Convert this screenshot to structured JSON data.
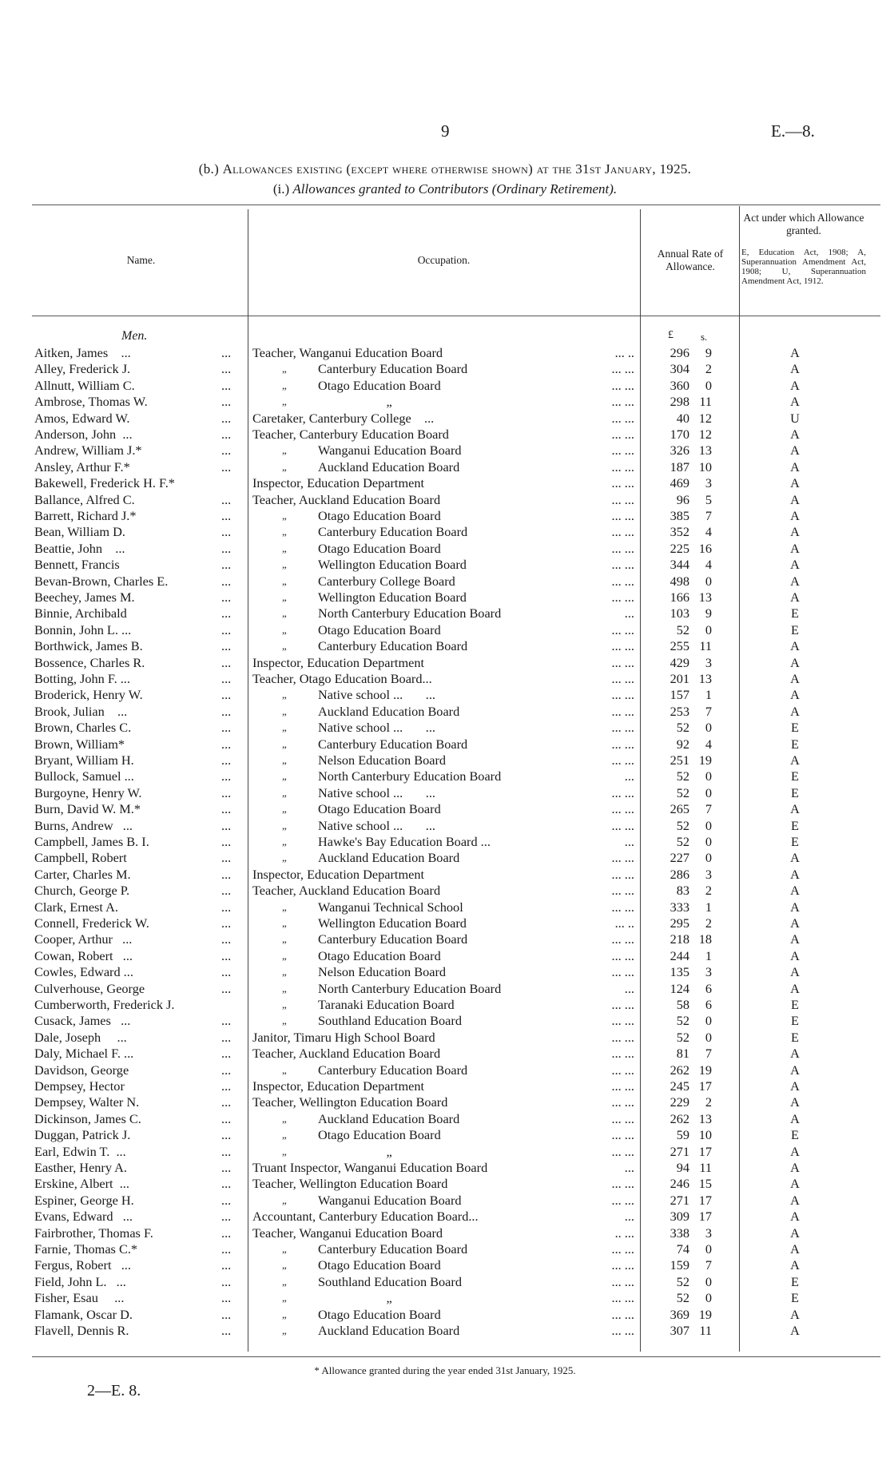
{
  "page": {
    "number": "9",
    "reference": "E.—8.",
    "bottom_signature": "2—E. 8."
  },
  "title": {
    "prefix": "(b.)",
    "text": "Allowances existing (except where otherwise shown) at the 31st January, 1925."
  },
  "subtitle": {
    "prefix": "(i.)",
    "text": "Allowances granted to Contributors (Ordinary Retirement)."
  },
  "headers": {
    "name": "Name.",
    "occupation": "Occupation.",
    "rate": "Annual Rate of Allowance.",
    "act": "Act under which Allowance granted.",
    "act_note": "E, Education Act, 1908; A, Superannuation Amendment Act, 1908; U, Superannuation Amendment Act, 1912."
  },
  "section": "Men.",
  "units": {
    "pounds": "£",
    "shillings": "s."
  },
  "leader": "...",
  "footnote": "* Allowance granted during the year ended 31st January, 1925.",
  "rows": [
    {
      "name": "Aitken, James    ...",
      "p": "",
      "b": "Teacher, Wanganui Education Board",
      "l": "...      ..",
      "pd": "296",
      "sh": "9",
      "act": "A"
    },
    {
      "name": "Alley, Frederick J.",
      "p": "„",
      "b": "Canterbury Education Board",
      "l": "...      ...",
      "pd": "304",
      "sh": "2",
      "act": "A"
    },
    {
      "name": "Allnutt, William C.",
      "p": "„",
      "b": "Otago Education Board",
      "l": "...      ...",
      "pd": "360",
      "sh": "0",
      "act": "A"
    },
    {
      "name": "Ambrose, Thomas W.",
      "p": "„",
      "b": "                     „",
      "l": "...      ...",
      "pd": "298",
      "sh": "11",
      "act": "A"
    },
    {
      "name": "Amos, Edward W.",
      "p": "",
      "b": "Caretaker, Canterbury College    ...",
      "l": "...      ...",
      "pd": "40",
      "sh": "12",
      "act": "U"
    },
    {
      "name": "Anderson, John  ...",
      "p": "",
      "b": "Teacher, Canterbury Education Board",
      "l": "...      ...",
      "pd": "170",
      "sh": "12",
      "act": "A"
    },
    {
      "name": "Andrew, William J.*",
      "p": "„",
      "b": "Wanganui Education Board",
      "l": "...      ...",
      "pd": "326",
      "sh": "13",
      "act": "A"
    },
    {
      "name": "Ansley, Arthur F.*",
      "p": "„",
      "b": "Auckland Education Board",
      "l": "...      ...",
      "pd": "187",
      "sh": "10",
      "act": "A"
    },
    {
      "name": "Bakewell, Frederick H. F.*",
      "nodots": true,
      "p": "",
      "b": "Inspector, Education Department",
      "l": "...      ...",
      "pd": "469",
      "sh": "3",
      "act": "A"
    },
    {
      "name": "Ballance, Alfred C.",
      "p": "",
      "b": "Teacher, Auckland Education Board",
      "l": "...      ...",
      "pd": "96",
      "sh": "5",
      "act": "A"
    },
    {
      "name": "Barrett, Richard J.*",
      "p": "„",
      "b": "Otago Education Board",
      "l": "...      ...",
      "pd": "385",
      "sh": "7",
      "act": "A"
    },
    {
      "name": "Bean, William D.",
      "p": "„",
      "b": "Canterbury Education Board",
      "l": "...      ...",
      "pd": "352",
      "sh": "4",
      "act": "A"
    },
    {
      "name": "Beattie, John    ...",
      "p": "„",
      "b": "Otago Education Board",
      "l": "...      ...",
      "pd": "225",
      "sh": "16",
      "act": "A"
    },
    {
      "name": "Bennett, Francis",
      "p": "„",
      "b": "Wellington Education Board",
      "l": "...      ...",
      "pd": "344",
      "sh": "4",
      "act": "A"
    },
    {
      "name": "Bevan-Brown, Charles E.",
      "p": "„",
      "b": "Canterbury College Board",
      "l": "...      ...",
      "pd": "498",
      "sh": "0",
      "act": "A"
    },
    {
      "name": "Beechey, James M.",
      "p": "„",
      "b": "Wellington Education Board",
      "l": "...      ...",
      "pd": "166",
      "sh": "13",
      "act": "A"
    },
    {
      "name": "Binnie, Archibald",
      "p": "„",
      "b": "North Canterbury Education Board",
      "l": "...",
      "pd": "103",
      "sh": "9",
      "act": "E"
    },
    {
      "name": "Bonnin, John L. ...",
      "p": "„",
      "b": "Otago Education Board",
      "l": "...      ...",
      "pd": "52",
      "sh": "0",
      "act": "E"
    },
    {
      "name": "Borthwick, James B.",
      "p": "„",
      "b": "Canterbury Education Board",
      "l": "...      ...",
      "pd": "255",
      "sh": "11",
      "act": "A"
    },
    {
      "name": "Bossence, Charles R.",
      "p": "",
      "b": "Inspector, Education Department",
      "l": "...      ...",
      "pd": "429",
      "sh": "3",
      "act": "A"
    },
    {
      "name": "Botting, John F. ...",
      "p": "",
      "b": "Teacher, Otago Education Board...",
      "l": "...      ...",
      "pd": "201",
      "sh": "13",
      "act": "A"
    },
    {
      "name": "Broderick, Henry W.",
      "p": "„",
      "b": "Native school ...       ...",
      "l": "...      ...",
      "pd": "157",
      "sh": "1",
      "act": "A"
    },
    {
      "name": "Brook, Julian    ...",
      "p": "„",
      "b": "Auckland Education Board",
      "l": "...      ...",
      "pd": "253",
      "sh": "7",
      "act": "A"
    },
    {
      "name": "Brown, Charles C.",
      "p": "„",
      "b": "Native school ...       ...",
      "l": "...      ...",
      "pd": "52",
      "sh": "0",
      "act": "E"
    },
    {
      "name": "Brown, William*",
      "p": "„",
      "b": "Canterbury Education Board",
      "l": "...      ...",
      "pd": "92",
      "sh": "4",
      "act": "E"
    },
    {
      "name": "Bryant, William H.",
      "p": "„",
      "b": "Nelson Education Board",
      "l": "...      ...",
      "pd": "251",
      "sh": "19",
      "act": "A"
    },
    {
      "name": "Bullock, Samuel ...",
      "p": "„",
      "b": "North Canterbury Education Board",
      "l": "...",
      "pd": "52",
      "sh": "0",
      "act": "E"
    },
    {
      "name": "Burgoyne, Henry W.",
      "p": "„",
      "b": "Native school ...       ...",
      "l": "...      ...",
      "pd": "52",
      "sh": "0",
      "act": "E"
    },
    {
      "name": "Burn, David W. M.*",
      "p": "„",
      "b": "Otago Education Board",
      "l": "...      ...",
      "pd": "265",
      "sh": "7",
      "act": "A"
    },
    {
      "name": "Burns, Andrew   ...",
      "p": "„",
      "b": "Native school ...       ...",
      "l": "...      ...",
      "pd": "52",
      "sh": "0",
      "act": "E"
    },
    {
      "name": "Campbell, James B. I.",
      "p": "„",
      "b": "Hawke's Bay Education Board ...",
      "l": "...",
      "pd": "52",
      "sh": "0",
      "act": "E"
    },
    {
      "name": "Campbell, Robert",
      "p": "„",
      "b": "Auckland Education Board",
      "l": "...      ...",
      "pd": "227",
      "sh": "0",
      "act": "A"
    },
    {
      "name": "Carter, Charles M.",
      "p": "",
      "b": "Inspector, Education Department",
      "l": "...      ...",
      "pd": "286",
      "sh": "3",
      "act": "A"
    },
    {
      "name": "Church, George P.",
      "p": "",
      "b": "Teacher, Auckland Education Board",
      "l": "...      ...",
      "pd": "83",
      "sh": "2",
      "act": "A"
    },
    {
      "name": "Clark, Ernest A.",
      "p": "„",
      "b": "Wanganui Technical School",
      "l": "...      ...",
      "pd": "333",
      "sh": "1",
      "act": "A"
    },
    {
      "name": "Connell, Frederick W.",
      "p": "„",
      "b": "Wellington Education Board",
      "l": "...      ..",
      "pd": "295",
      "sh": "2",
      "act": "A"
    },
    {
      "name": "Cooper, Arthur   ...",
      "p": "„",
      "b": "Canterbury Education Board",
      "l": "...      ...",
      "pd": "218",
      "sh": "18",
      "act": "A"
    },
    {
      "name": "Cowan, Robert   ...",
      "p": "„",
      "b": "Otago Education Board",
      "l": "...      ...",
      "pd": "244",
      "sh": "1",
      "act": "A"
    },
    {
      "name": "Cowles, Edward ...",
      "p": "„",
      "b": "Nelson Education Board",
      "l": "...      ...",
      "pd": "135",
      "sh": "3",
      "act": "A"
    },
    {
      "name": "Culverhouse, George",
      "p": "„",
      "b": "North Canterbury Education Board",
      "l": "...",
      "pd": "124",
      "sh": "6",
      "act": "A"
    },
    {
      "name": "Cumberworth, Frederick J.",
      "nodots": true,
      "p": "„",
      "b": "Taranaki Education Board",
      "l": "...      ...",
      "pd": "58",
      "sh": "6",
      "act": "E"
    },
    {
      "name": "Cusack, James   ...",
      "p": "„",
      "b": "Southland Education Board",
      "l": "...      ...",
      "pd": "52",
      "sh": "0",
      "act": "E"
    },
    {
      "name": "Dale, Joseph     ...",
      "p": "",
      "b": "Janitor, Timaru High School Board",
      "l": "...      ...",
      "pd": "52",
      "sh": "0",
      "act": "E"
    },
    {
      "name": "Daly, Michael F. ...",
      "p": "",
      "b": "Teacher, Auckland Education Board",
      "l": "...      ...",
      "pd": "81",
      "sh": "7",
      "act": "A"
    },
    {
      "name": "Davidson, George",
      "p": "„",
      "b": "Canterbury Education Board",
      "l": "...      ...",
      "pd": "262",
      "sh": "19",
      "act": "A"
    },
    {
      "name": "Dempsey, Hector",
      "p": "",
      "b": "Inspector, Education Department",
      "l": "...      ...",
      "pd": "245",
      "sh": "17",
      "act": "A"
    },
    {
      "name": "Dempsey, Walter N.",
      "p": "",
      "b": "Teacher, Wellington Education Board",
      "l": "...      ...",
      "pd": "229",
      "sh": "2",
      "act": "A"
    },
    {
      "name": "Dickinson, James C.",
      "p": "„",
      "b": "Auckland Education Board",
      "l": "...      ...",
      "pd": "262",
      "sh": "13",
      "act": "A"
    },
    {
      "name": "Duggan, Patrick J.",
      "p": "„",
      "b": "Otago Education Board",
      "l": "...      ...",
      "pd": "59",
      "sh": "10",
      "act": "E"
    },
    {
      "name": "Earl, Edwin T.  ...",
      "p": "„",
      "b": "                     „",
      "l": "...      ...",
      "pd": "271",
      "sh": "17",
      "act": "A"
    },
    {
      "name": "Easther, Henry A.",
      "p": "",
      "b": "Truant Inspector, Wanganui Education Board",
      "l": "...",
      "pd": "94",
      "sh": "11",
      "act": "A"
    },
    {
      "name": "Erskine, Albert  ...",
      "p": "",
      "b": "Teacher, Wellington Education Board",
      "l": "...      ...",
      "pd": "246",
      "sh": "15",
      "act": "A"
    },
    {
      "name": "Espiner, George H.",
      "p": "„",
      "b": "Wanganui Education Board",
      "l": "...      ...",
      "pd": "271",
      "sh": "17",
      "act": "A"
    },
    {
      "name": "Evans, Edward   ...",
      "p": "",
      "b": "Accountant, Canterbury Education Board...",
      "l": "...",
      "pd": "309",
      "sh": "17",
      "act": "A"
    },
    {
      "name": "Fairbrother, Thomas F.",
      "p": "",
      "b": "Teacher, Wanganui Education Board",
      "l": "..       ...",
      "pd": "338",
      "sh": "3",
      "act": "A"
    },
    {
      "name": "Farnie, Thomas C.*",
      "p": "„",
      "b": "Canterbury Education Board",
      "l": "...      ...",
      "pd": "74",
      "sh": "0",
      "act": "A"
    },
    {
      "name": "Fergus, Robert   ...",
      "p": "„",
      "b": "Otago Education Board",
      "l": "...      ...",
      "pd": "159",
      "sh": "7",
      "act": "A"
    },
    {
      "name": "Field, John L.   ...",
      "p": "„",
      "b": "Southland Education Board",
      "l": "...      ...",
      "pd": "52",
      "sh": "0",
      "act": "E"
    },
    {
      "name": "Fisher, Esau     ...",
      "p": "„",
      "b": "                     „",
      "l": "...      ...",
      "pd": "52",
      "sh": "0",
      "act": "E"
    },
    {
      "name": "Flamank, Oscar D.",
      "p": "„",
      "b": "Otago Education Board",
      "l": "...      ...",
      "pd": "369",
      "sh": "19",
      "act": "A"
    },
    {
      "name": "Flavell, Dennis R.",
      "p": "„",
      "b": "Auckland Education Board",
      "l": "...      ...",
      "pd": "307",
      "sh": "11",
      "act": "A"
    }
  ]
}
